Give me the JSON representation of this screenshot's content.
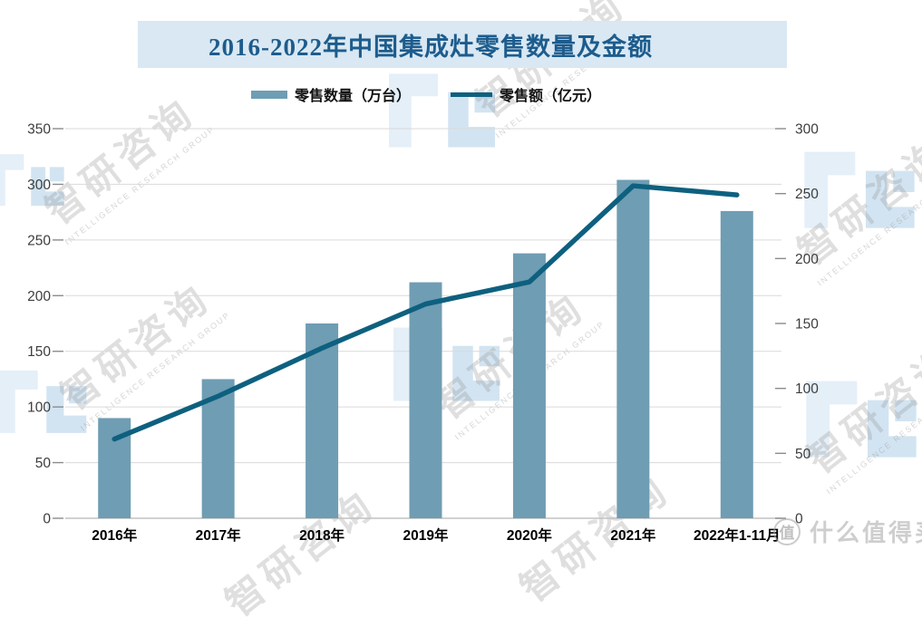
{
  "header": {
    "title": "2016-2022年中国集成灶零售数量及金额",
    "band_color": "#d9e8f3",
    "title_color": "#1d5c8d"
  },
  "legend": [
    {
      "label": "零售数量（万台）",
      "type": "bar"
    },
    {
      "label": "零售额（亿元）",
      "type": "line"
    }
  ],
  "chart_data": {
    "type": "bar",
    "title": "2016-2022年中国集成灶零售数量及金额",
    "categories": [
      "2016年",
      "2017年",
      "2018年",
      "2019年",
      "2020年",
      "2021年",
      "2022年1-11月"
    ],
    "series": [
      {
        "name": "零售数量（万台）",
        "type": "bar",
        "axis": "left",
        "color": "#6f9db3",
        "values": [
          90,
          125,
          175,
          212,
          238,
          304,
          276
        ]
      },
      {
        "name": "零售额（亿元）",
        "type": "line",
        "axis": "right",
        "color": "#0e607f",
        "values": [
          61,
          94,
          131,
          165,
          182,
          256,
          249
        ]
      }
    ],
    "left_axis": {
      "min": 0,
      "max": 350,
      "step": 50,
      "ticks": [
        0,
        50,
        100,
        150,
        200,
        250,
        300,
        350
      ]
    },
    "right_axis": {
      "min": 0,
      "max": 300,
      "step": 50,
      "ticks": [
        0,
        50,
        100,
        150,
        200,
        250,
        300
      ]
    },
    "grid": true,
    "legend_position": "top",
    "colors": {
      "gridline": "#dadada",
      "axis_line": "#c2c2c2",
      "tick_mark": "#8c8c8c",
      "tick_label": "#3d3d3d",
      "category_label": "#000000"
    }
  },
  "watermarks": {
    "brand_text": "智研咨询",
    "brand_subtext": "INTELLIGENCE RESEARCH GROUP",
    "smzdm_badge": "值",
    "smzdm_text": "什么值得买"
  }
}
